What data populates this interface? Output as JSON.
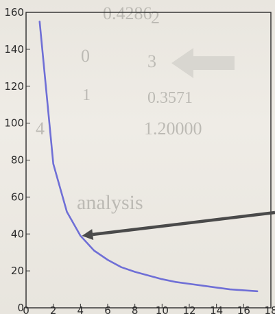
{
  "chart_data": {
    "type": "line",
    "title": "",
    "xlabel": "",
    "ylabel": "",
    "xlim": [
      0,
      18
    ],
    "ylim": [
      0,
      160
    ],
    "x_ticks": [
      "0",
      "2",
      "4",
      "6",
      "8",
      "10",
      "12",
      "14",
      "16",
      "18"
    ],
    "y_ticks": [
      "0",
      "20",
      "40",
      "60",
      "80",
      "100",
      "120",
      "140",
      "160"
    ],
    "grid": false,
    "legend": "none",
    "series": [
      {
        "color": "#6f6fd6",
        "x": [
          1,
          2,
          3,
          4,
          5,
          6,
          7,
          8,
          9,
          10,
          11,
          12,
          13,
          14,
          15,
          16,
          17
        ],
        "y": [
          155,
          78,
          52,
          39,
          31,
          26,
          22,
          19.5,
          17.5,
          15.5,
          14,
          13,
          12,
          11,
          10,
          9.5,
          9
        ]
      }
    ],
    "annotations": [
      {
        "type": "arrow",
        "target_x": 4,
        "target_y": 39,
        "color": "#4a4a4a"
      }
    ]
  },
  "background": {
    "ghost_texts": [
      "0.4286",
      "2",
      "0",
      "3",
      "1",
      "0.3571",
      "4",
      "1.20000",
      "analysis"
    ]
  }
}
